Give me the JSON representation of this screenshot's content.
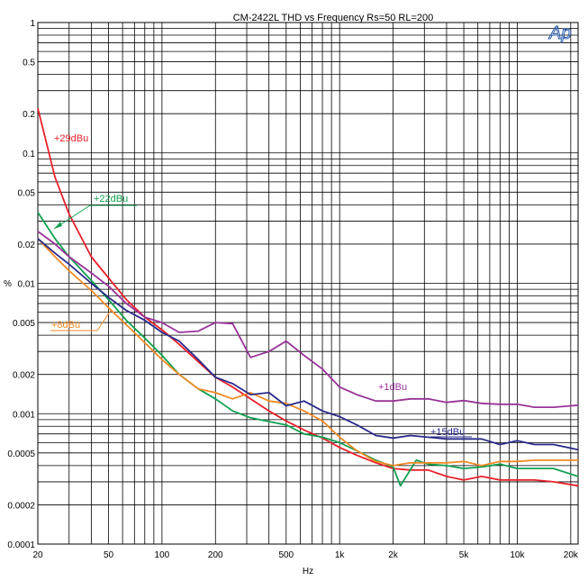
{
  "chart_data": {
    "type": "line",
    "title": "CM-2422L  THD vs Frequency Rs=50  RL=200",
    "xlabel": "Hz",
    "ylabel": "%",
    "x_scale": "log",
    "y_scale": "log",
    "xlim": [
      20,
      22000
    ],
    "ylim": [
      0.0001,
      1
    ],
    "grid": true,
    "logo": "Ap",
    "x_ticks": [
      {
        "value": 20,
        "label": "20"
      },
      {
        "value": 50,
        "label": "50"
      },
      {
        "value": 100,
        "label": "100"
      },
      {
        "value": 200,
        "label": "200"
      },
      {
        "value": 500,
        "label": "500"
      },
      {
        "value": 1000,
        "label": "1k"
      },
      {
        "value": 2000,
        "label": "2k"
      },
      {
        "value": 5000,
        "label": "5k"
      },
      {
        "value": 10000,
        "label": "10k"
      },
      {
        "value": 20000,
        "label": "20k"
      }
    ],
    "y_ticks": [
      {
        "value": 1,
        "label": "1"
      },
      {
        "value": 0.5,
        "label": "0.5"
      },
      {
        "value": 0.2,
        "label": "0.2"
      },
      {
        "value": 0.1,
        "label": "0.1"
      },
      {
        "value": 0.05,
        "label": "0.05"
      },
      {
        "value": 0.02,
        "label": "0.02"
      },
      {
        "value": 0.01,
        "label": "0.01"
      },
      {
        "value": 0.005,
        "label": "0.005"
      },
      {
        "value": 0.002,
        "label": "0.002"
      },
      {
        "value": 0.001,
        "label": "0.001"
      },
      {
        "value": 0.0005,
        "label": "0.0005"
      },
      {
        "value": 0.0002,
        "label": "0.0002"
      },
      {
        "value": 0.0001,
        "label": "0.0001"
      }
    ],
    "series": [
      {
        "name": "+29dBu",
        "color": "#e8202a",
        "points": [
          [
            20,
            0.22
          ],
          [
            25,
            0.065
          ],
          [
            30,
            0.034
          ],
          [
            40,
            0.016
          ],
          [
            50,
            0.011
          ],
          [
            63,
            0.0075
          ],
          [
            80,
            0.0055
          ],
          [
            100,
            0.0044
          ],
          [
            125,
            0.0034
          ],
          [
            160,
            0.0025
          ],
          [
            200,
            0.0019
          ],
          [
            250,
            0.0016
          ],
          [
            315,
            0.0013
          ],
          [
            400,
            0.00105
          ],
          [
            500,
            0.00088
          ],
          [
            630,
            0.00075
          ],
          [
            800,
            0.00065
          ],
          [
            1000,
            0.00055
          ],
          [
            1250,
            0.00048
          ],
          [
            1600,
            0.00042
          ],
          [
            2000,
            0.00038
          ],
          [
            2500,
            0.00037
          ],
          [
            3150,
            0.00037
          ],
          [
            4000,
            0.00033
          ],
          [
            5000,
            0.00031
          ],
          [
            6300,
            0.00033
          ],
          [
            8000,
            0.00031
          ],
          [
            10000,
            0.00031
          ],
          [
            12500,
            0.00031
          ],
          [
            16000,
            0.0003
          ],
          [
            22000,
            0.00028
          ]
        ]
      },
      {
        "name": "+22dBu",
        "color": "#10a050",
        "points": [
          [
            20,
            0.035
          ],
          [
            25,
            0.022
          ],
          [
            30,
            0.016
          ],
          [
            40,
            0.0105
          ],
          [
            50,
            0.0075
          ],
          [
            63,
            0.0052
          ],
          [
            80,
            0.0038
          ],
          [
            100,
            0.0028
          ],
          [
            125,
            0.002
          ],
          [
            160,
            0.00155
          ],
          [
            200,
            0.0013
          ],
          [
            250,
            0.00105
          ],
          [
            315,
            0.00093
          ],
          [
            400,
            0.00087
          ],
          [
            500,
            0.00082
          ],
          [
            630,
            0.0007
          ],
          [
            800,
            0.00066
          ],
          [
            1000,
            0.0006
          ],
          [
            1250,
            0.00052
          ],
          [
            1600,
            0.00044
          ],
          [
            2000,
            0.00039
          ],
          [
            2200,
            0.00028
          ],
          [
            2700,
            0.00044
          ],
          [
            3150,
            0.00041
          ],
          [
            4000,
            0.0004
          ],
          [
            5000,
            0.00038
          ],
          [
            6300,
            0.00039
          ],
          [
            8000,
            0.00041
          ],
          [
            10000,
            0.00038
          ],
          [
            12500,
            0.00038
          ],
          [
            16000,
            0.00038
          ],
          [
            22000,
            0.00033
          ]
        ]
      },
      {
        "name": "+8dBu",
        "color": "#f08a24",
        "points": [
          [
            20,
            0.022
          ],
          [
            25,
            0.016
          ],
          [
            30,
            0.0125
          ],
          [
            40,
            0.0088
          ],
          [
            50,
            0.0065
          ],
          [
            63,
            0.0048
          ],
          [
            80,
            0.0035
          ],
          [
            100,
            0.0026
          ],
          [
            125,
            0.002
          ],
          [
            160,
            0.00155
          ],
          [
            200,
            0.00145
          ],
          [
            250,
            0.0013
          ],
          [
            315,
            0.00145
          ],
          [
            400,
            0.00125
          ],
          [
            500,
            0.0012
          ],
          [
            630,
            0.00105
          ],
          [
            800,
            0.00088
          ],
          [
            1000,
            0.00066
          ],
          [
            1250,
            0.00052
          ],
          [
            1600,
            0.00043
          ],
          [
            2000,
            0.0004
          ],
          [
            2500,
            0.00042
          ],
          [
            3150,
            0.00042
          ],
          [
            4000,
            0.00042
          ],
          [
            5000,
            0.00043
          ],
          [
            6300,
            0.0004
          ],
          [
            8000,
            0.00043
          ],
          [
            10000,
            0.00043
          ],
          [
            12500,
            0.00044
          ],
          [
            16000,
            0.00044
          ],
          [
            22000,
            0.00044
          ]
        ]
      },
      {
        "name": "+15dBu",
        "color": "#2a2a8a",
        "points": [
          [
            20,
            0.022
          ],
          [
            25,
            0.017
          ],
          [
            30,
            0.014
          ],
          [
            40,
            0.01
          ],
          [
            50,
            0.0078
          ],
          [
            63,
            0.0062
          ],
          [
            80,
            0.0052
          ],
          [
            100,
            0.0042
          ],
          [
            125,
            0.0036
          ],
          [
            160,
            0.0026
          ],
          [
            200,
            0.0019
          ],
          [
            250,
            0.0017
          ],
          [
            315,
            0.0014
          ],
          [
            400,
            0.00145
          ],
          [
            500,
            0.00115
          ],
          [
            630,
            0.00125
          ],
          [
            800,
            0.00105
          ],
          [
            1000,
            0.00095
          ],
          [
            1250,
            0.00082
          ],
          [
            1600,
            0.00068
          ],
          [
            2000,
            0.00065
          ],
          [
            2500,
            0.00068
          ],
          [
            3150,
            0.00066
          ],
          [
            4000,
            0.00064
          ],
          [
            5000,
            0.00064
          ],
          [
            6300,
            0.00064
          ],
          [
            8000,
            0.00058
          ],
          [
            10000,
            0.00062
          ],
          [
            12500,
            0.00058
          ],
          [
            16000,
            0.00058
          ],
          [
            22000,
            0.00053
          ]
        ]
      },
      {
        "name": "+1dBu",
        "color": "#993399",
        "points": [
          [
            20,
            0.025
          ],
          [
            25,
            0.02
          ],
          [
            30,
            0.016
          ],
          [
            40,
            0.012
          ],
          [
            50,
            0.0095
          ],
          [
            63,
            0.007
          ],
          [
            80,
            0.0055
          ],
          [
            100,
            0.005
          ],
          [
            125,
            0.0042
          ],
          [
            160,
            0.0043
          ],
          [
            200,
            0.005
          ],
          [
            250,
            0.0049
          ],
          [
            315,
            0.0027
          ],
          [
            400,
            0.003
          ],
          [
            500,
            0.0036
          ],
          [
            630,
            0.0028
          ],
          [
            800,
            0.0022
          ],
          [
            1000,
            0.0016
          ],
          [
            1250,
            0.0014
          ],
          [
            1600,
            0.00125
          ],
          [
            2000,
            0.00125
          ],
          [
            2500,
            0.0013
          ],
          [
            3150,
            0.0013
          ],
          [
            4000,
            0.00122
          ],
          [
            5000,
            0.00126
          ],
          [
            6300,
            0.0012
          ],
          [
            8000,
            0.00118
          ],
          [
            10000,
            0.00118
          ],
          [
            12500,
            0.00112
          ],
          [
            16000,
            0.00112
          ],
          [
            22000,
            0.00116
          ]
        ]
      }
    ],
    "annotations": [
      {
        "text": "+29dBu",
        "series": "+29dBu"
      },
      {
        "text": "+22dBu",
        "series": "+22dBu"
      },
      {
        "text": "+8dBu",
        "series": "+8dBu"
      },
      {
        "text": "+15dBu",
        "series": "+15dBu"
      },
      {
        "text": "+1dBu",
        "series": "+1dBu"
      }
    ]
  }
}
